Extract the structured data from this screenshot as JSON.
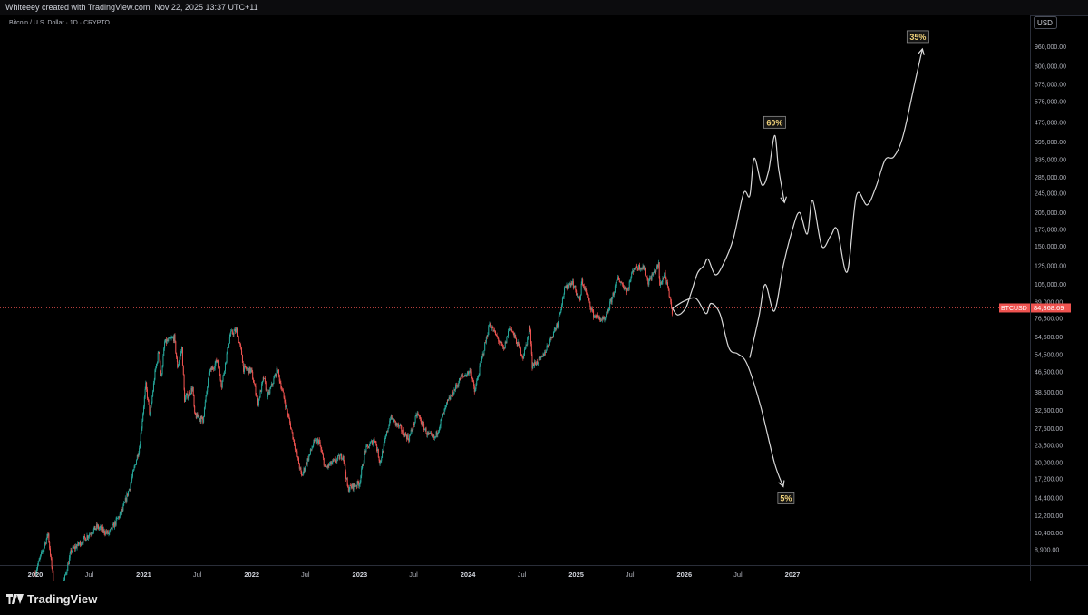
{
  "header": {
    "attribution": "Whiteeey created with TradingView.com, Nov 22, 2025 13:37 UTC+11"
  },
  "brand": {
    "logo_text": "TradingView"
  },
  "colors": {
    "background": "#000000",
    "up": "#26a69a",
    "down": "#ef5350",
    "projection": "#d9d9d9",
    "price_line": "#ef5350",
    "label_box": "#f0d27a"
  },
  "chart_data": {
    "type": "line",
    "title": "Bitcoin / U.S. Dollar · 1D · CRYPTO",
    "currency_label": "USD",
    "y_scale": "log",
    "ylim": [
      7900,
      1200000
    ],
    "x_ticks": [
      "2020",
      "Jul",
      "2021",
      "Jul",
      "2022",
      "Jul",
      "2023",
      "Jul",
      "2024",
      "Jul",
      "2025",
      "Jul",
      "2026",
      "Jul",
      "2027"
    ],
    "y_ticks": [
      "960,000.00",
      "800,000.00",
      "675,000.00",
      "575,000.00",
      "475,000.00",
      "395,000.00",
      "335,000.00",
      "285,000.00",
      "245,000.00",
      "205,000.00",
      "175,000.00",
      "150,000.00",
      "125,000.00",
      "105,000.00",
      "89,000.00",
      "76,500.00",
      "64,500.00",
      "54,500.00",
      "46,500.00",
      "38,500.00",
      "32,500.00",
      "27,500.00",
      "23,500.00",
      "20,000.00",
      "17,200.00",
      "14,400.00",
      "12,200.00",
      "10,400.00",
      "8,900.00"
    ],
    "last_price": {
      "symbol": "BTCUSD",
      "value": "84,368.69",
      "y": 84368.69
    },
    "price_series": {
      "name": "BTCUSD",
      "points": [
        [
          "2020-01-01",
          7200
        ],
        [
          "2020-02-13",
          10300
        ],
        [
          "2020-03-13",
          5000
        ],
        [
          "2020-05-01",
          8800
        ],
        [
          "2020-06-01",
          9500
        ],
        [
          "2020-07-27",
          11000
        ],
        [
          "2020-09-05",
          10300
        ],
        [
          "2020-10-21",
          12800
        ],
        [
          "2020-11-15",
          16000
        ],
        [
          "2020-12-17",
          23000
        ],
        [
          "2021-01-08",
          41000
        ],
        [
          "2021-01-22",
          31000
        ],
        [
          "2021-02-08",
          46000
        ],
        [
          "2021-02-21",
          57000
        ],
        [
          "2021-02-28",
          44000
        ],
        [
          "2021-03-13",
          61000
        ],
        [
          "2021-04-14",
          64000
        ],
        [
          "2021-04-25",
          49000
        ],
        [
          "2021-05-10",
          58000
        ],
        [
          "2021-05-19",
          36000
        ],
        [
          "2021-06-15",
          40000
        ],
        [
          "2021-06-22",
          31000
        ],
        [
          "2021-07-20",
          29800
        ],
        [
          "2021-08-10",
          46000
        ],
        [
          "2021-09-07",
          52000
        ],
        [
          "2021-09-21",
          41000
        ],
        [
          "2021-10-20",
          66000
        ],
        [
          "2021-11-10",
          68500
        ],
        [
          "2021-11-28",
          55000
        ],
        [
          "2021-12-04",
          48000
        ],
        [
          "2021-12-30",
          47000
        ],
        [
          "2022-01-22",
          35000
        ],
        [
          "2022-02-10",
          44000
        ],
        [
          "2022-02-24",
          37000
        ],
        [
          "2022-03-28",
          47500
        ],
        [
          "2022-05-12",
          28000
        ],
        [
          "2022-06-18",
          17600
        ],
        [
          "2022-07-29",
          24000
        ],
        [
          "2022-08-15",
          24500
        ],
        [
          "2022-09-06",
          19000
        ],
        [
          "2022-11-05",
          21500
        ],
        [
          "2022-11-21",
          15700
        ],
        [
          "2022-12-30",
          16500
        ],
        [
          "2023-01-20",
          22500
        ],
        [
          "2023-02-20",
          25000
        ],
        [
          "2023-03-10",
          20000
        ],
        [
          "2023-04-14",
          30500
        ],
        [
          "2023-06-15",
          25000
        ],
        [
          "2023-07-14",
          31500
        ],
        [
          "2023-08-17",
          26000
        ],
        [
          "2023-09-11",
          25000
        ],
        [
          "2023-10-24",
          35000
        ],
        [
          "2023-12-08",
          44000
        ],
        [
          "2024-01-11",
          47000
        ],
        [
          "2024-01-23",
          38500
        ],
        [
          "2024-03-14",
          73000
        ],
        [
          "2024-05-01",
          57000
        ],
        [
          "2024-05-21",
          71500
        ],
        [
          "2024-07-05",
          53500
        ],
        [
          "2024-07-29",
          70000
        ],
        [
          "2024-08-05",
          49500
        ],
        [
          "2024-09-06",
          52500
        ],
        [
          "2024-10-29",
          73000
        ],
        [
          "2024-11-22",
          99500
        ],
        [
          "2024-12-17",
          108000
        ],
        [
          "2025-01-13",
          90000
        ],
        [
          "2025-01-20",
          109000
        ],
        [
          "2025-02-28",
          79000
        ],
        [
          "2025-04-07",
          74500
        ],
        [
          "2025-05-22",
          111500
        ],
        [
          "2025-06-22",
          98500
        ],
        [
          "2025-07-14",
          123000
        ],
        [
          "2025-08-14",
          124000
        ],
        [
          "2025-09-01",
          107500
        ],
        [
          "2025-10-06",
          126000
        ],
        [
          "2025-10-10",
          104000
        ],
        [
          "2025-10-27",
          116000
        ],
        [
          "2025-11-21",
          81500
        ],
        [
          "2025-11-22",
          84368.69
        ]
      ]
    },
    "projections": [
      {
        "label": "60%",
        "points": [
          [
            "2025-11-22",
            84000
          ],
          [
            "2025-12-10",
            79000
          ],
          [
            "2026-01-05",
            84000
          ],
          [
            "2026-01-25",
            98000
          ],
          [
            "2026-02-15",
            117000
          ],
          [
            "2026-03-08",
            125000
          ],
          [
            "2026-03-22",
            133000
          ],
          [
            "2026-04-15",
            115000
          ],
          [
            "2026-05-10",
            125000
          ],
          [
            "2026-06-15",
            160000
          ],
          [
            "2026-07-20",
            245000
          ],
          [
            "2026-08-10",
            240000
          ],
          [
            "2026-08-25",
            340000
          ],
          [
            "2026-09-20",
            265000
          ],
          [
            "2026-10-12",
            300000
          ],
          [
            "2026-11-02",
            420000
          ],
          [
            "2026-11-15",
            310000
          ],
          [
            "2026-12-05",
            225000
          ]
        ]
      },
      {
        "label": "5%",
        "points": [
          [
            "2025-11-22",
            84000
          ],
          [
            "2026-01-01",
            90000
          ],
          [
            "2026-02-10",
            92000
          ],
          [
            "2026-03-15",
            80000
          ],
          [
            "2026-04-01",
            88000
          ],
          [
            "2026-05-01",
            80000
          ],
          [
            "2026-06-01",
            58000
          ],
          [
            "2026-07-01",
            55000
          ],
          [
            "2026-08-01",
            50000
          ],
          [
            "2026-09-15",
            34000
          ],
          [
            "2026-11-01",
            20000
          ],
          [
            "2026-12-01",
            16000
          ]
        ]
      },
      {
        "label": "35%",
        "points": [
          [
            "2026-08-10",
            53000
          ],
          [
            "2026-09-10",
            78000
          ],
          [
            "2026-10-01",
            105000
          ],
          [
            "2026-11-01",
            82000
          ],
          [
            "2026-12-01",
            125000
          ],
          [
            "2027-01-01",
            175000
          ],
          [
            "2027-01-25",
            205000
          ],
          [
            "2027-02-20",
            168000
          ],
          [
            "2027-03-10",
            230000
          ],
          [
            "2027-04-10",
            150000
          ],
          [
            "2027-05-10",
            165000
          ],
          [
            "2027-06-01",
            175000
          ],
          [
            "2027-07-05",
            118000
          ],
          [
            "2027-08-05",
            240000
          ],
          [
            "2027-09-10",
            220000
          ],
          [
            "2027-10-10",
            260000
          ],
          [
            "2027-11-10",
            335000
          ],
          [
            "2027-12-10",
            345000
          ],
          [
            "2028-01-10",
            420000
          ],
          [
            "2028-02-20",
            700000
          ],
          [
            "2028-03-15",
            940000
          ]
        ]
      }
    ],
    "grid": false,
    "legend": "none"
  }
}
